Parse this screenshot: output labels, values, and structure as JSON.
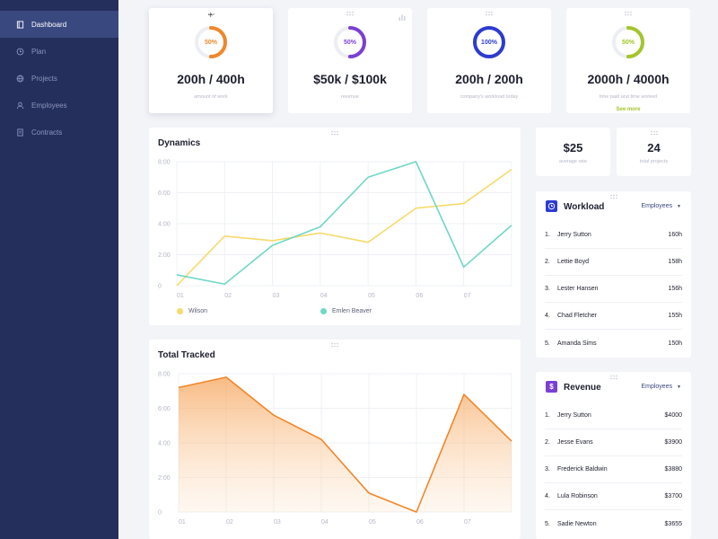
{
  "sidebar": {
    "items": [
      {
        "label": "Dashboard",
        "icon": "book-icon",
        "active": true
      },
      {
        "label": "Plan",
        "icon": "clock-icon"
      },
      {
        "label": "Projects",
        "icon": "globe-icon"
      },
      {
        "label": "Employees",
        "icon": "user-icon"
      },
      {
        "label": "Contracts",
        "icon": "document-icon"
      }
    ]
  },
  "stats": [
    {
      "percent_label": "50%",
      "progress": 0.5,
      "color": "#f0872a",
      "value": "200h / 400h",
      "label": "amount of work"
    },
    {
      "percent_label": "50%",
      "progress": 0.5,
      "color": "#7b3fd4",
      "value": "$50k / $100k",
      "label": "revenue"
    },
    {
      "percent_label": "100%",
      "progress": 1.0,
      "color": "#2d3bd1",
      "value": "200h / 200h",
      "label": "company's workload today"
    },
    {
      "percent_label": "50%",
      "progress": 0.5,
      "color": "#a3c52a",
      "value": "2000h / 4000h",
      "label": "time paid and time worked",
      "link": "See more"
    }
  ],
  "mini_stats": [
    {
      "value": "$25",
      "label": "average rate"
    },
    {
      "value": "24",
      "label": "total projects"
    }
  ],
  "dynamics": {
    "title": "Dynamics"
  },
  "total_tracked": {
    "title": "Total Tracked"
  },
  "workload": {
    "title": "Workload",
    "dropdown": "Employees",
    "accent": "#2d3bd1",
    "rows": [
      {
        "num": "1.",
        "name": "Jerry Sutton",
        "value": "160h"
      },
      {
        "num": "2.",
        "name": "Lettie Boyd",
        "value": "158h"
      },
      {
        "num": "3.",
        "name": "Lester Hansen",
        "value": "156h"
      },
      {
        "num": "4.",
        "name": "Chad Fletcher",
        "value": "155h"
      },
      {
        "num": "5.",
        "name": "Amanda Sims",
        "value": "150h"
      }
    ]
  },
  "revenue": {
    "title": "Revenue",
    "dropdown": "Employees",
    "accent": "#7b3fd4",
    "rows": [
      {
        "num": "1.",
        "name": "Jerry Sutton",
        "value": "$4000"
      },
      {
        "num": "2.",
        "name": "Jesse Evans",
        "value": "$3900"
      },
      {
        "num": "3.",
        "name": "Frederick Baldwin",
        "value": "$3880"
      },
      {
        "num": "4.",
        "name": "Lula Robinson",
        "value": "$3700"
      },
      {
        "num": "5.",
        "name": "Sadie Newton",
        "value": "$3655"
      }
    ]
  },
  "chart_data": [
    {
      "type": "line",
      "x": [
        "01",
        "02",
        "03",
        "04",
        "05",
        "06",
        "07"
      ],
      "ytick_labels": [
        "0",
        "2:00",
        "4:00",
        "6:00",
        "8:00"
      ],
      "ylim": [
        0,
        8
      ],
      "grid": true,
      "legend": "bottom",
      "series": [
        {
          "name": "Wilson",
          "color": "#f7da6a",
          "x": [
            0,
            1,
            2,
            3,
            4,
            5,
            6,
            7
          ],
          "values": [
            0,
            3.2,
            2.9,
            3.4,
            2.8,
            5,
            5.3,
            7.5
          ]
        },
        {
          "name": "Emlen Beaver",
          "color": "#6fd7c6",
          "x": [
            0,
            1,
            2,
            3,
            4,
            5,
            6,
            7
          ],
          "values": [
            0.7,
            0.1,
            2.6,
            3.8,
            7,
            8,
            1.2,
            3.9
          ]
        }
      ]
    },
    {
      "type": "area",
      "x": [
        "01",
        "02",
        "03",
        "04",
        "05",
        "06",
        "07"
      ],
      "ytick_labels": [
        "0",
        "2:00",
        "4:00",
        "6:00",
        "8:00"
      ],
      "ylim": [
        0,
        8
      ],
      "grid": true,
      "series": [
        {
          "color": "#f0872a",
          "x": [
            0,
            1,
            2,
            3,
            4,
            5,
            6,
            7
          ],
          "values": [
            7.2,
            7.8,
            5.6,
            4.2,
            1.1,
            0,
            6.8,
            4.1
          ]
        }
      ]
    }
  ]
}
